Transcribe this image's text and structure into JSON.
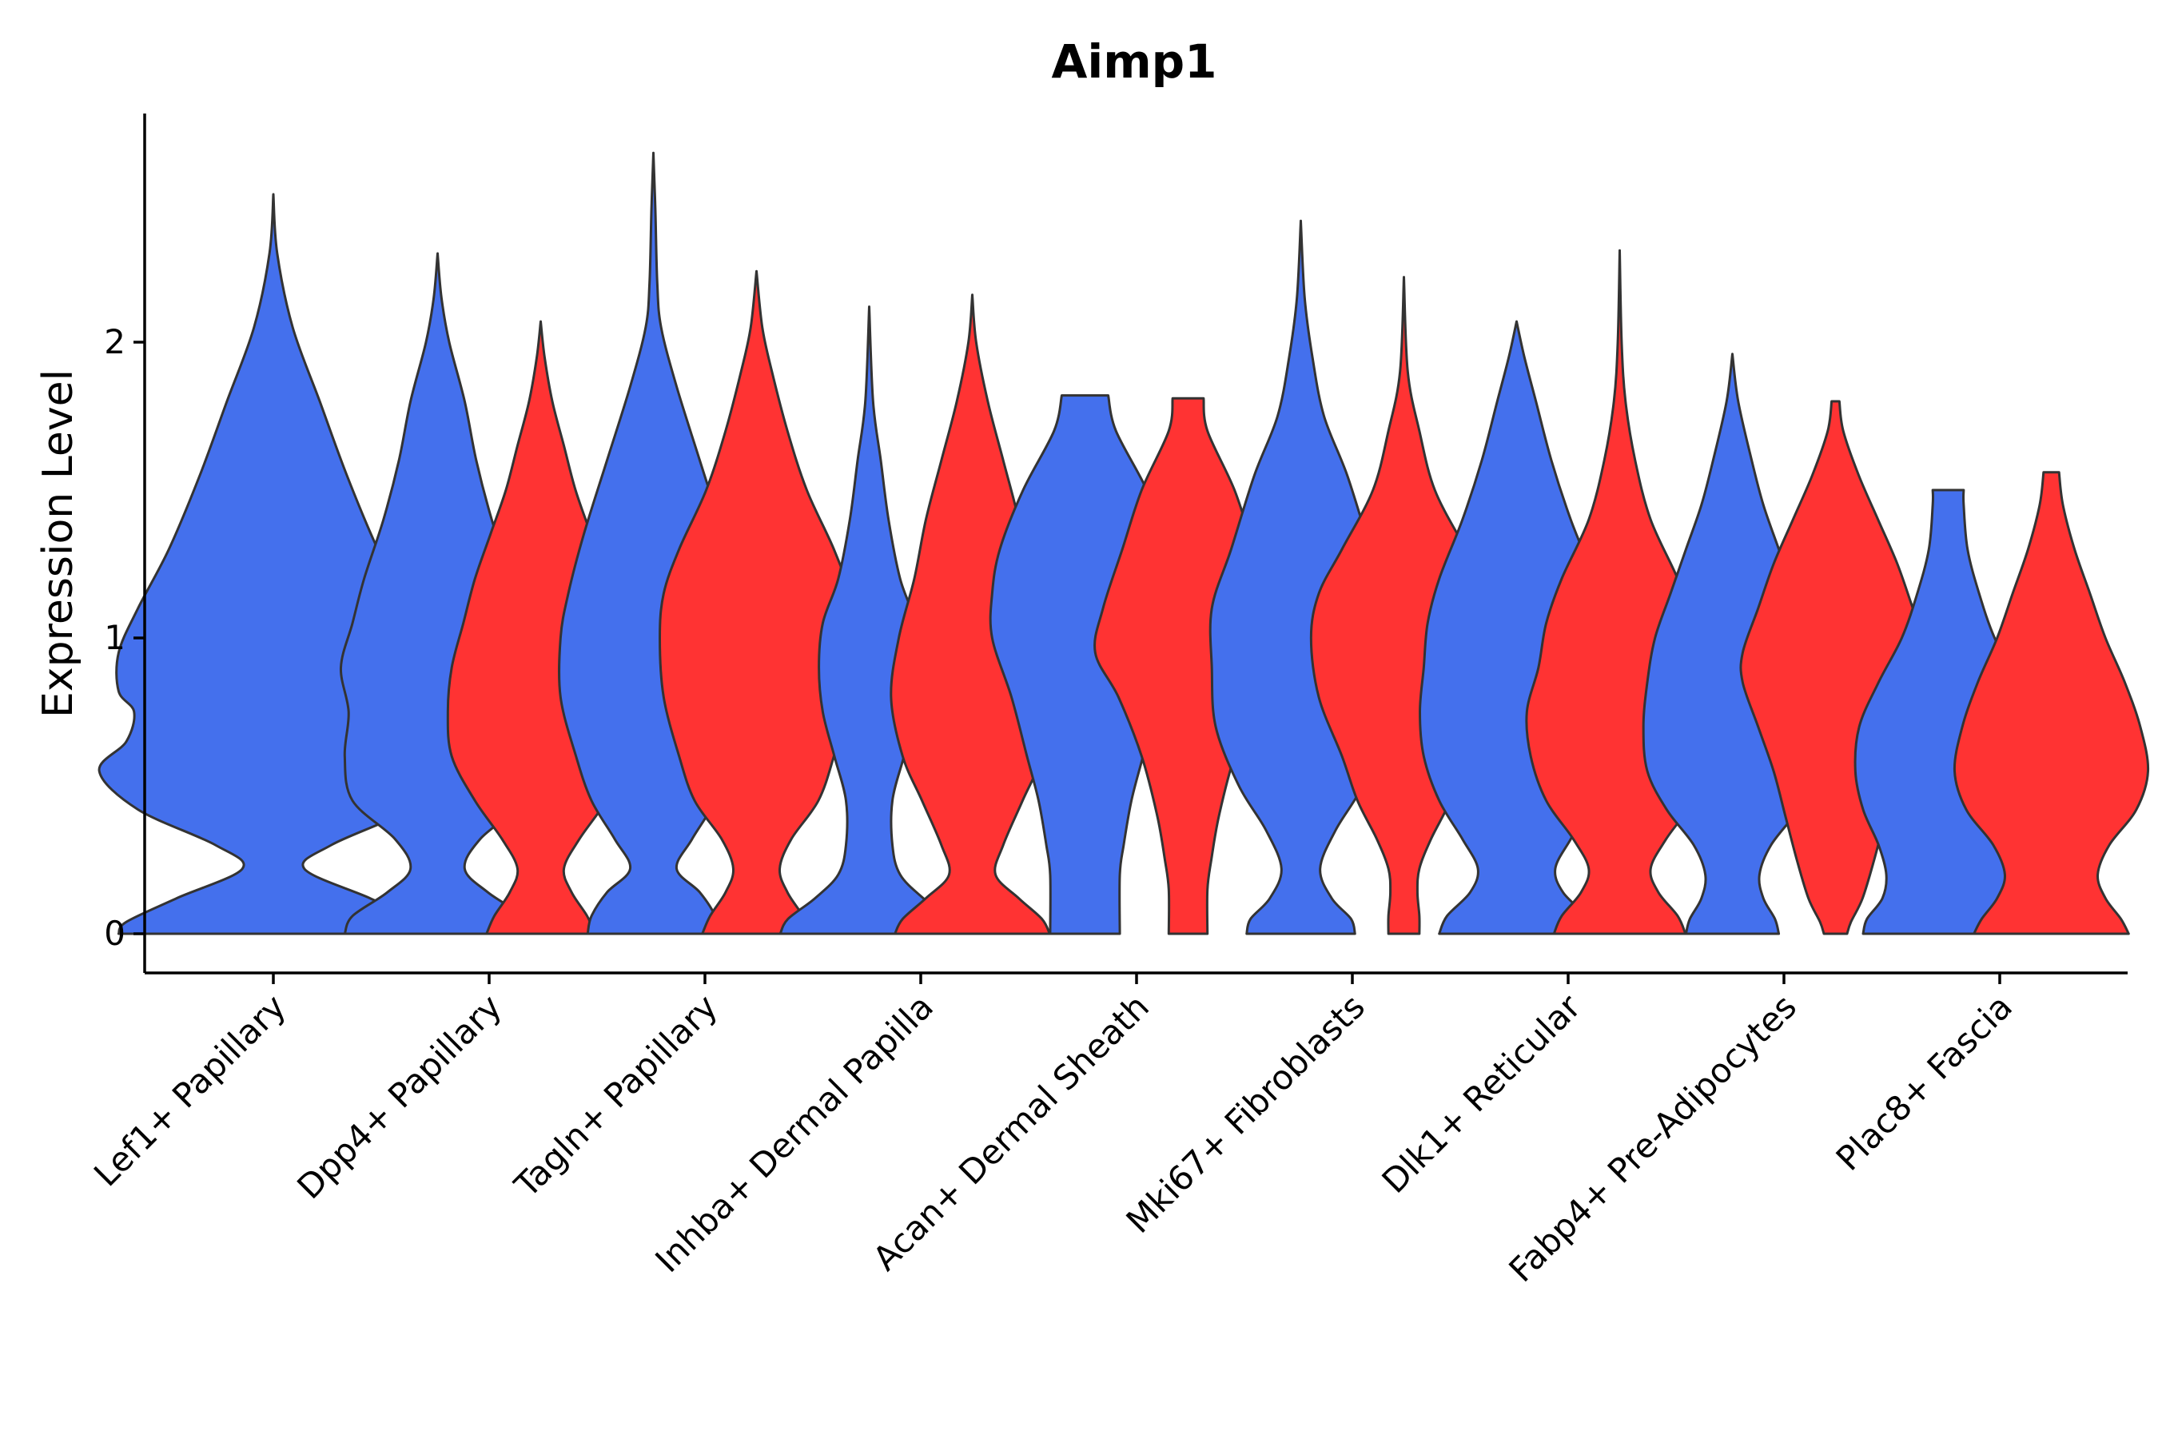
{
  "chart_data": {
    "type": "violin",
    "title": "Aimp1",
    "xlabel": "",
    "ylabel": "Expression Level",
    "ylim": [
      -0.13,
      2.77
    ],
    "yticks": [
      0,
      1,
      2
    ],
    "grid": false,
    "legend": "none",
    "colors": {
      "group_a": "#4470ED",
      "group_b": "#FF3333",
      "outline": "#333333"
    },
    "categories": [
      "Lef1+ Papillary",
      "Dpp4+ Papillary",
      "Tagln+ Papillary",
      "Inhba+ Dermal Papilla",
      "Acan+ Dermal Sheath",
      "Mki67+ Fibroblasts",
      "Dlk1+ Reticular",
      "Fabp4+ Pre-Adipocytes",
      "Plac8+ Fascia"
    ],
    "violins": [
      {
        "category": 0,
        "color": "blue",
        "offset": 0.0,
        "max": 2.5,
        "pts": [
          [
            0,
            0.4
          ],
          [
            0.04,
            0.38
          ],
          [
            0.12,
            0.25
          ],
          [
            0.22,
            0.08
          ],
          [
            0.3,
            0.15
          ],
          [
            0.42,
            0.35
          ],
          [
            0.55,
            0.45
          ],
          [
            0.65,
            0.38
          ],
          [
            0.75,
            0.36
          ],
          [
            0.82,
            0.4
          ],
          [
            0.95,
            0.4
          ],
          [
            1.1,
            0.35
          ],
          [
            1.3,
            0.27
          ],
          [
            1.55,
            0.19
          ],
          [
            1.8,
            0.12
          ],
          [
            2.05,
            0.05
          ],
          [
            2.3,
            0.01
          ],
          [
            2.5,
            0
          ]
        ]
      },
      {
        "category": 1,
        "color": "blue",
        "offset": -0.25,
        "max": 2.3,
        "pts": [
          [
            0,
            0.24
          ],
          [
            0.06,
            0.22
          ],
          [
            0.14,
            0.13
          ],
          [
            0.22,
            0.07
          ],
          [
            0.32,
            0.11
          ],
          [
            0.45,
            0.22
          ],
          [
            0.6,
            0.24
          ],
          [
            0.75,
            0.23
          ],
          [
            0.9,
            0.25
          ],
          [
            1.05,
            0.22
          ],
          [
            1.2,
            0.19
          ],
          [
            1.4,
            0.14
          ],
          [
            1.6,
            0.1
          ],
          [
            1.8,
            0.07
          ],
          [
            2.0,
            0.03
          ],
          [
            2.15,
            0.01
          ],
          [
            2.3,
            0
          ]
        ]
      },
      {
        "category": 1,
        "color": "red",
        "offset": 0.25,
        "max": 2.07,
        "pts": [
          [
            0,
            0.14
          ],
          [
            0.06,
            0.12
          ],
          [
            0.14,
            0.08
          ],
          [
            0.22,
            0.06
          ],
          [
            0.32,
            0.1
          ],
          [
            0.45,
            0.17
          ],
          [
            0.6,
            0.23
          ],
          [
            0.75,
            0.24
          ],
          [
            0.9,
            0.23
          ],
          [
            1.05,
            0.2
          ],
          [
            1.2,
            0.17
          ],
          [
            1.35,
            0.13
          ],
          [
            1.5,
            0.09
          ],
          [
            1.65,
            0.06
          ],
          [
            1.8,
            0.03
          ],
          [
            1.95,
            0.01
          ],
          [
            2.07,
            0
          ]
        ]
      },
      {
        "category": 2,
        "color": "blue",
        "offset": -0.25,
        "max": 2.64,
        "pts": [
          [
            0,
            0.17
          ],
          [
            0.06,
            0.16
          ],
          [
            0.14,
            0.12
          ],
          [
            0.22,
            0.06
          ],
          [
            0.32,
            0.1
          ],
          [
            0.45,
            0.16
          ],
          [
            0.6,
            0.2
          ],
          [
            0.8,
            0.24
          ],
          [
            1.0,
            0.24
          ],
          [
            1.15,
            0.22
          ],
          [
            1.35,
            0.18
          ],
          [
            1.6,
            0.12
          ],
          [
            1.85,
            0.06
          ],
          [
            2.05,
            0.02
          ],
          [
            2.2,
            0.01
          ],
          [
            2.45,
            0.005
          ],
          [
            2.64,
            0
          ]
        ]
      },
      {
        "category": 2,
        "color": "red",
        "offset": 0.25,
        "max": 2.24,
        "pts": [
          [
            0,
            0.14
          ],
          [
            0.06,
            0.12
          ],
          [
            0.14,
            0.08
          ],
          [
            0.22,
            0.06
          ],
          [
            0.32,
            0.09
          ],
          [
            0.45,
            0.16
          ],
          [
            0.6,
            0.2
          ],
          [
            0.8,
            0.24
          ],
          [
            1.0,
            0.25
          ],
          [
            1.15,
            0.24
          ],
          [
            1.3,
            0.2
          ],
          [
            1.5,
            0.13
          ],
          [
            1.7,
            0.08
          ],
          [
            1.9,
            0.04
          ],
          [
            2.05,
            0.015
          ],
          [
            2.24,
            0
          ]
        ]
      },
      {
        "category": 3,
        "color": "blue",
        "offset": -0.25,
        "max": 2.12,
        "pts": [
          [
            0,
            0.23
          ],
          [
            0.05,
            0.21
          ],
          [
            0.12,
            0.14
          ],
          [
            0.2,
            0.08
          ],
          [
            0.3,
            0.06
          ],
          [
            0.45,
            0.06
          ],
          [
            0.6,
            0.09
          ],
          [
            0.75,
            0.12
          ],
          [
            0.9,
            0.13
          ],
          [
            1.05,
            0.12
          ],
          [
            1.2,
            0.08
          ],
          [
            1.4,
            0.05
          ],
          [
            1.6,
            0.03
          ],
          [
            1.8,
            0.01
          ],
          [
            2.12,
            0
          ]
        ]
      },
      {
        "category": 3,
        "color": "red",
        "offset": 0.25,
        "max": 2.16,
        "pts": [
          [
            0,
            0.2
          ],
          [
            0.05,
            0.18
          ],
          [
            0.12,
            0.12
          ],
          [
            0.2,
            0.06
          ],
          [
            0.3,
            0.08
          ],
          [
            0.45,
            0.13
          ],
          [
            0.6,
            0.18
          ],
          [
            0.8,
            0.21
          ],
          [
            1.0,
            0.19
          ],
          [
            1.2,
            0.15
          ],
          [
            1.4,
            0.12
          ],
          [
            1.6,
            0.08
          ],
          [
            1.8,
            0.04
          ],
          [
            2.0,
            0.01
          ],
          [
            2.16,
            0
          ]
        ]
      },
      {
        "category": 4,
        "color": "blue",
        "offset": -0.25,
        "max": 1.82,
        "pts": [
          [
            0,
            0.09
          ],
          [
            0.2,
            0.09
          ],
          [
            0.3,
            0.1
          ],
          [
            0.45,
            0.12
          ],
          [
            0.6,
            0.15
          ],
          [
            0.8,
            0.19
          ],
          [
            1.0,
            0.24
          ],
          [
            1.15,
            0.24
          ],
          [
            1.3,
            0.22
          ],
          [
            1.5,
            0.16
          ],
          [
            1.7,
            0.08
          ],
          [
            1.82,
            0.06
          ]
        ]
      },
      {
        "category": 4,
        "color": "red",
        "offset": 0.25,
        "max": 1.81,
        "pts": [
          [
            0,
            0.05
          ],
          [
            0.15,
            0.05
          ],
          [
            0.25,
            0.06
          ],
          [
            0.4,
            0.08
          ],
          [
            0.6,
            0.12
          ],
          [
            0.8,
            0.18
          ],
          [
            0.95,
            0.24
          ],
          [
            1.1,
            0.22
          ],
          [
            1.3,
            0.17
          ],
          [
            1.5,
            0.12
          ],
          [
            1.7,
            0.05
          ],
          [
            1.81,
            0.04
          ]
        ]
      },
      {
        "category": 5,
        "color": "blue",
        "offset": -0.25,
        "max": 2.41,
        "pts": [
          [
            0,
            0.14
          ],
          [
            0.05,
            0.13
          ],
          [
            0.12,
            0.08
          ],
          [
            0.22,
            0.05
          ],
          [
            0.35,
            0.09
          ],
          [
            0.5,
            0.16
          ],
          [
            0.7,
            0.22
          ],
          [
            0.9,
            0.23
          ],
          [
            1.1,
            0.23
          ],
          [
            1.3,
            0.18
          ],
          [
            1.55,
            0.12
          ],
          [
            1.75,
            0.06
          ],
          [
            1.95,
            0.03
          ],
          [
            2.15,
            0.01
          ],
          [
            2.41,
            0
          ]
        ]
      },
      {
        "category": 5,
        "color": "red",
        "offset": 0.25,
        "max": 2.22,
        "pts": [
          [
            0,
            0.04
          ],
          [
            0.06,
            0.04
          ],
          [
            0.14,
            0.035
          ],
          [
            0.22,
            0.04
          ],
          [
            0.32,
            0.07
          ],
          [
            0.45,
            0.12
          ],
          [
            0.6,
            0.16
          ],
          [
            0.8,
            0.22
          ],
          [
            1.0,
            0.24
          ],
          [
            1.15,
            0.22
          ],
          [
            1.3,
            0.16
          ],
          [
            1.5,
            0.08
          ],
          [
            1.7,
            0.04
          ],
          [
            1.9,
            0.01
          ],
          [
            2.22,
            0
          ]
        ]
      },
      {
        "category": 6,
        "color": "blue",
        "offset": -0.25,
        "max": 2.07,
        "pts": [
          [
            0,
            0.2
          ],
          [
            0.06,
            0.18
          ],
          [
            0.14,
            0.12
          ],
          [
            0.22,
            0.1
          ],
          [
            0.32,
            0.14
          ],
          [
            0.45,
            0.2
          ],
          [
            0.6,
            0.24
          ],
          [
            0.75,
            0.25
          ],
          [
            0.9,
            0.24
          ],
          [
            1.05,
            0.23
          ],
          [
            1.2,
            0.2
          ],
          [
            1.4,
            0.14
          ],
          [
            1.6,
            0.09
          ],
          [
            1.8,
            0.05
          ],
          [
            1.95,
            0.02
          ],
          [
            2.07,
            0
          ]
        ]
      },
      {
        "category": 6,
        "color": "red",
        "offset": 0.25,
        "max": 2.31,
        "pts": [
          [
            0,
            0.17
          ],
          [
            0.06,
            0.15
          ],
          [
            0.14,
            0.1
          ],
          [
            0.22,
            0.08
          ],
          [
            0.32,
            0.12
          ],
          [
            0.45,
            0.19
          ],
          [
            0.6,
            0.23
          ],
          [
            0.75,
            0.24
          ],
          [
            0.9,
            0.21
          ],
          [
            1.05,
            0.19
          ],
          [
            1.2,
            0.15
          ],
          [
            1.4,
            0.08
          ],
          [
            1.6,
            0.04
          ],
          [
            1.8,
            0.015
          ],
          [
            2.0,
            0.005
          ],
          [
            2.31,
            0
          ]
        ]
      },
      {
        "category": 7,
        "color": "blue",
        "offset": -0.25,
        "max": 1.96,
        "pts": [
          [
            0,
            0.12
          ],
          [
            0.05,
            0.11
          ],
          [
            0.12,
            0.08
          ],
          [
            0.2,
            0.07
          ],
          [
            0.3,
            0.1
          ],
          [
            0.42,
            0.17
          ],
          [
            0.55,
            0.22
          ],
          [
            0.7,
            0.23
          ],
          [
            0.85,
            0.22
          ],
          [
            1.0,
            0.2
          ],
          [
            1.15,
            0.16
          ],
          [
            1.3,
            0.12
          ],
          [
            1.45,
            0.08
          ],
          [
            1.6,
            0.05
          ],
          [
            1.8,
            0.015
          ],
          [
            1.96,
            0
          ]
        ]
      },
      {
        "category": 7,
        "color": "red",
        "offset": 0.25,
        "max": 1.8,
        "pts": [
          [
            0,
            0.03
          ],
          [
            0.04,
            0.04
          ],
          [
            0.12,
            0.07
          ],
          [
            0.25,
            0.1
          ],
          [
            0.4,
            0.13
          ],
          [
            0.55,
            0.16
          ],
          [
            0.7,
            0.2
          ],
          [
            0.85,
            0.24
          ],
          [
            0.95,
            0.24
          ],
          [
            1.1,
            0.2
          ],
          [
            1.25,
            0.16
          ],
          [
            1.4,
            0.11
          ],
          [
            1.55,
            0.06
          ],
          [
            1.7,
            0.02
          ],
          [
            1.8,
            0.01
          ]
        ]
      },
      {
        "category": 8,
        "color": "blue",
        "offset": -0.25,
        "max": 1.5,
        "pts": [
          [
            0,
            0.22
          ],
          [
            0.05,
            0.21
          ],
          [
            0.12,
            0.17
          ],
          [
            0.2,
            0.16
          ],
          [
            0.3,
            0.18
          ],
          [
            0.42,
            0.22
          ],
          [
            0.55,
            0.24
          ],
          [
            0.7,
            0.23
          ],
          [
            0.85,
            0.18
          ],
          [
            1.0,
            0.12
          ],
          [
            1.15,
            0.08
          ],
          [
            1.3,
            0.05
          ],
          [
            1.45,
            0.04
          ],
          [
            1.5,
            0.04
          ]
        ]
      },
      {
        "category": 8,
        "color": "red",
        "offset": 0.25,
        "max": 1.56,
        "pts": [
          [
            0,
            0.2
          ],
          [
            0.05,
            0.18
          ],
          [
            0.12,
            0.14
          ],
          [
            0.2,
            0.12
          ],
          [
            0.3,
            0.15
          ],
          [
            0.42,
            0.22
          ],
          [
            0.55,
            0.25
          ],
          [
            0.7,
            0.23
          ],
          [
            0.85,
            0.19
          ],
          [
            1.0,
            0.14
          ],
          [
            1.15,
            0.1
          ],
          [
            1.3,
            0.06
          ],
          [
            1.45,
            0.03
          ],
          [
            1.56,
            0.02
          ]
        ]
      }
    ]
  }
}
